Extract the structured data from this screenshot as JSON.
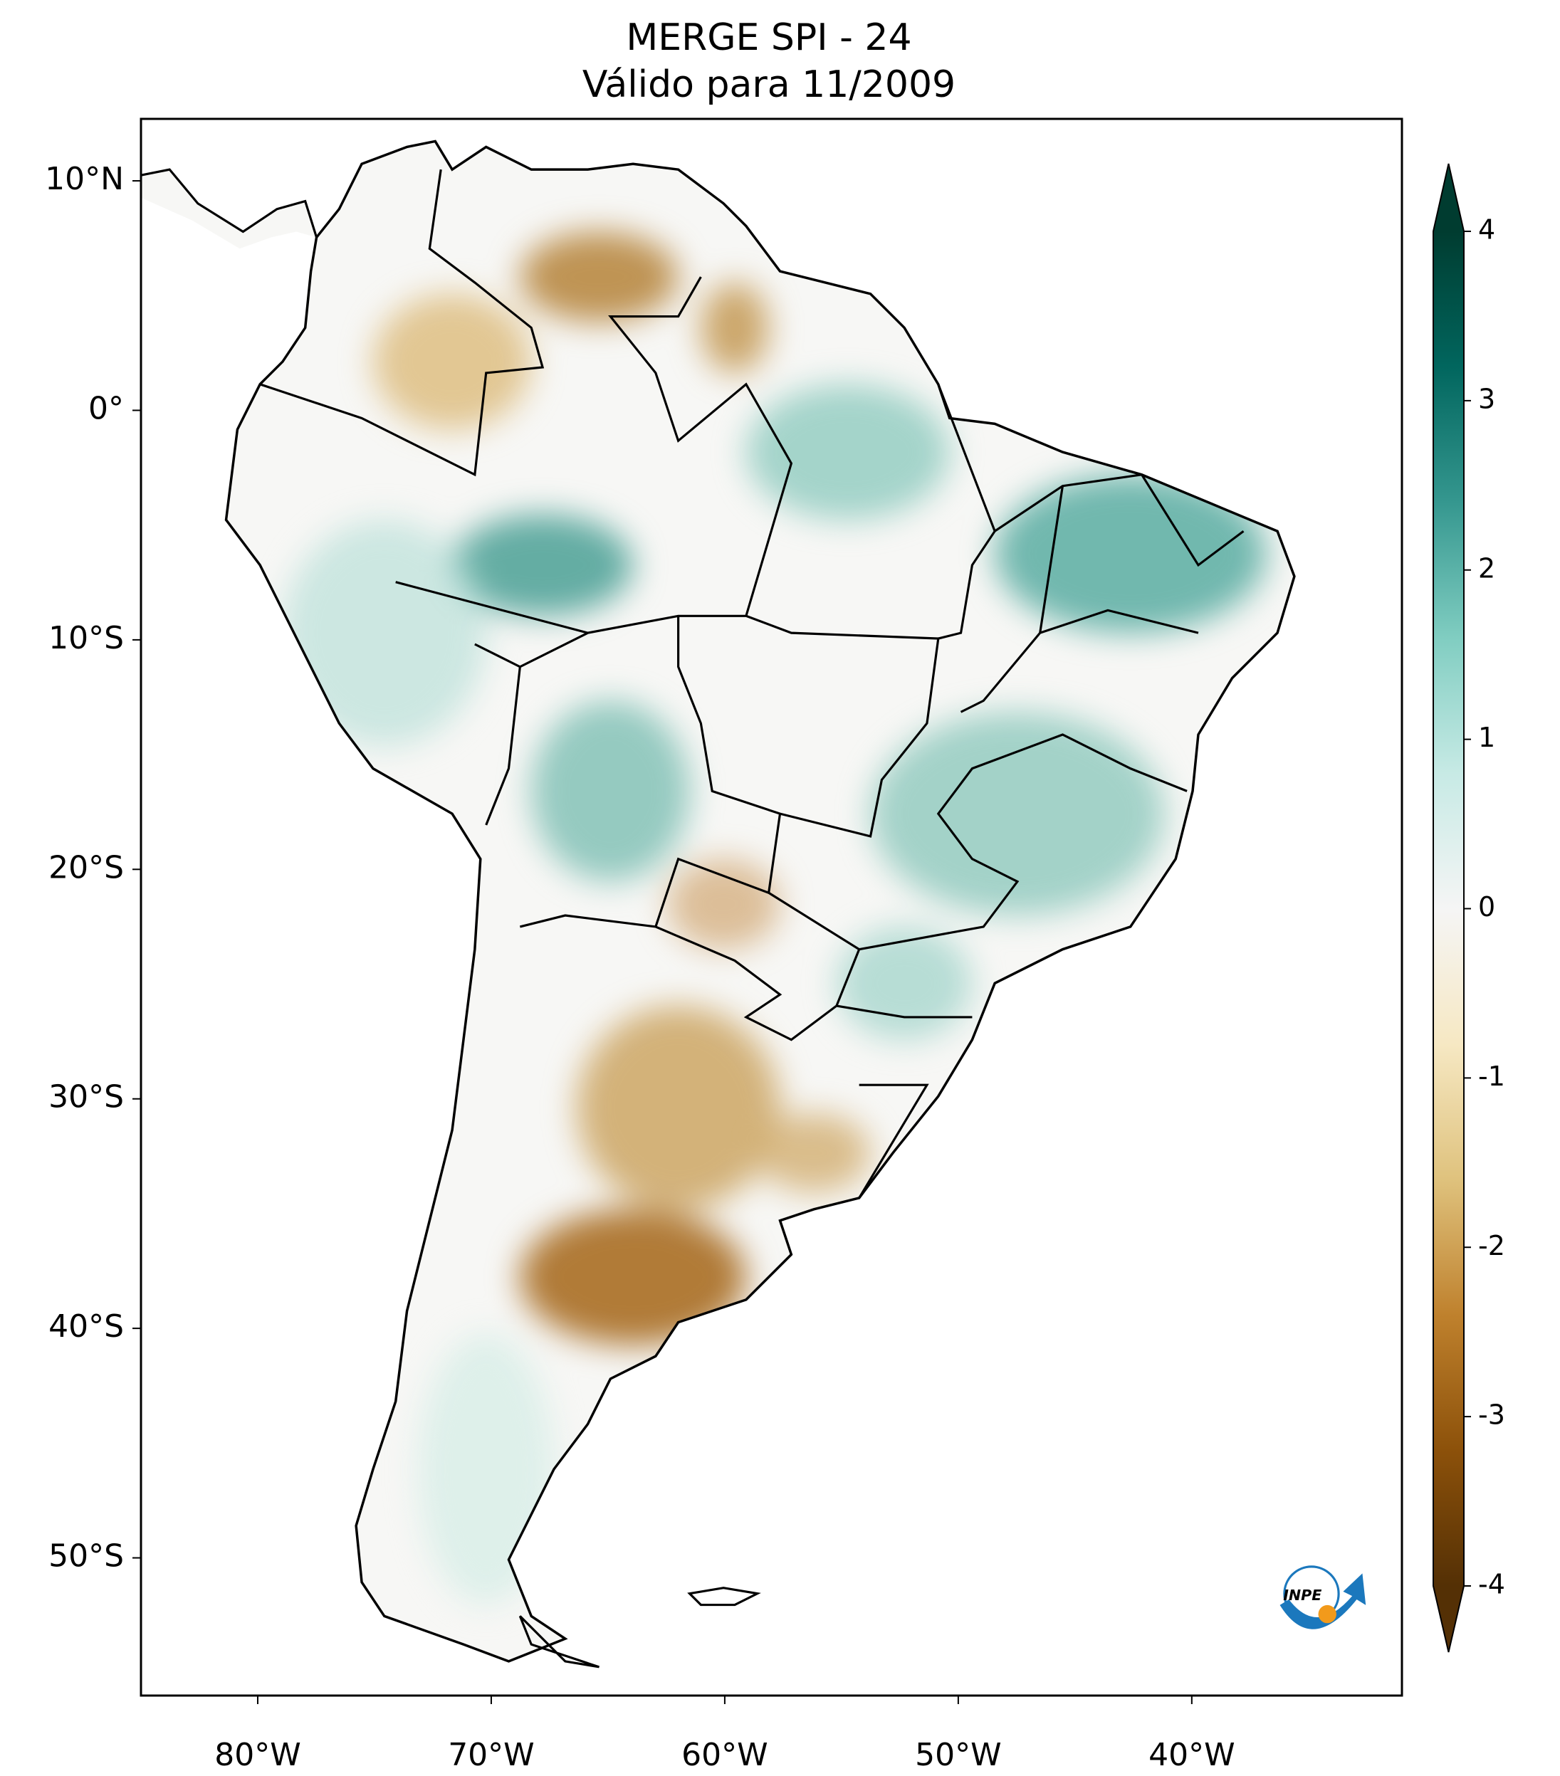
{
  "title": "MERGE   SPI - 24",
  "subtitle": "Válido para 11/2009",
  "map": {
    "xlim": [
      -85,
      -31
    ],
    "ylim": [
      -56,
      12.7
    ],
    "xticks": [
      {
        "value": -80,
        "label": "80°W"
      },
      {
        "value": -70,
        "label": "70°W"
      },
      {
        "value": -60,
        "label": "60°W"
      },
      {
        "value": -50,
        "label": "50°W"
      },
      {
        "value": -40,
        "label": "40°W"
      }
    ],
    "yticks": [
      {
        "value": 10,
        "label": "10°N"
      },
      {
        "value": 0,
        "label": "0°"
      },
      {
        "value": -10,
        "label": "10°S"
      },
      {
        "value": -20,
        "label": "20°S"
      },
      {
        "value": -30,
        "label": "30°S"
      },
      {
        "value": -40,
        "label": "40°S"
      },
      {
        "value": -50,
        "label": "50°S"
      }
    ]
  },
  "colorbar": {
    "colormap": "BrBG",
    "lim": [
      -4,
      4
    ],
    "ticks": [
      -4,
      -3,
      -2,
      -1,
      0,
      1,
      2,
      3,
      4
    ]
  },
  "logo": "INPE"
}
